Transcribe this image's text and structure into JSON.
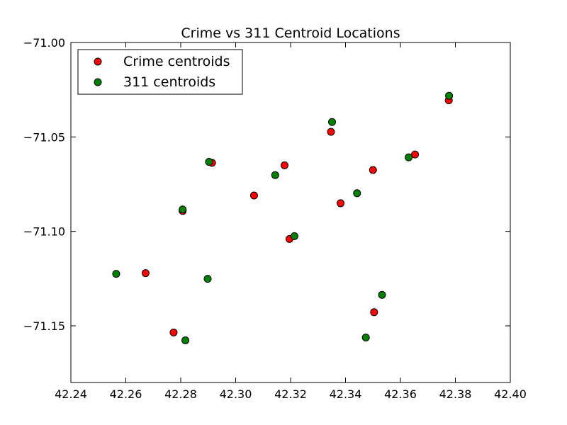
{
  "chart_data": {
    "type": "scatter",
    "title": "Crime vs 311 Centroid Locations",
    "xlabel": "",
    "ylabel": "",
    "xlim": [
      42.24,
      42.4
    ],
    "ylim": [
      -71.18,
      -71.0
    ],
    "x_ticks": [
      "42.24",
      "42.26",
      "42.28",
      "42.30",
      "42.32",
      "42.34",
      "42.36",
      "42.38",
      "42.40"
    ],
    "y_ticks": [
      "−71.00",
      "−71.05",
      "−71.10",
      "−71.15"
    ],
    "grid": false,
    "legend_position": "upper-left",
    "series": [
      {
        "name": "Crime centroids",
        "color": "#ff0000",
        "points": [
          {
            "x": 42.2672,
            "y": -71.1221
          },
          {
            "x": 42.2774,
            "y": -71.1535
          },
          {
            "x": 42.2807,
            "y": -71.0892
          },
          {
            "x": 42.2914,
            "y": -71.0637
          },
          {
            "x": 42.3067,
            "y": -71.081
          },
          {
            "x": 42.3178,
            "y": -71.065
          },
          {
            "x": 42.3196,
            "y": -71.104
          },
          {
            "x": 42.3347,
            "y": -71.0473
          },
          {
            "x": 42.3382,
            "y": -71.0851
          },
          {
            "x": 42.35,
            "y": -71.0675
          },
          {
            "x": 42.3504,
            "y": -71.1428
          },
          {
            "x": 42.3653,
            "y": -71.0593
          },
          {
            "x": 42.3776,
            "y": -71.0306
          }
        ]
      },
      {
        "name": "311 centroids",
        "color": "#008000",
        "points": [
          {
            "x": 42.2565,
            "y": -71.1225
          },
          {
            "x": 42.2807,
            "y": -71.0884
          },
          {
            "x": 42.2817,
            "y": -71.1577
          },
          {
            "x": 42.2898,
            "y": -71.1251
          },
          {
            "x": 42.2903,
            "y": -71.0632
          },
          {
            "x": 42.3144,
            "y": -71.0702
          },
          {
            "x": 42.3214,
            "y": -71.1025
          },
          {
            "x": 42.3351,
            "y": -71.0421
          },
          {
            "x": 42.3442,
            "y": -71.0798
          },
          {
            "x": 42.3474,
            "y": -71.1562
          },
          {
            "x": 42.3533,
            "y": -71.1336
          },
          {
            "x": 42.363,
            "y": -71.0608
          },
          {
            "x": 42.3777,
            "y": -71.0282
          }
        ]
      }
    ]
  }
}
